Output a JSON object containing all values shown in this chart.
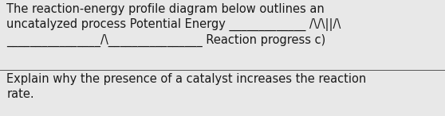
{
  "line1": "The reaction-energy profile diagram below outlines an",
  "line2": "uncatalyzed process Potential Energy _____________ /\\/\\||/\\",
  "line3": "________________/\\________________ Reaction progress c)",
  "line4": "Explain why the presence of a catalyst increases the reaction",
  "line5": "rate.",
  "background_color": "#e8e8e8",
  "text_color": "#1a1a1a",
  "font_size": 10.5,
  "fig_width": 5.58,
  "fig_height": 1.46,
  "dpi": 100
}
